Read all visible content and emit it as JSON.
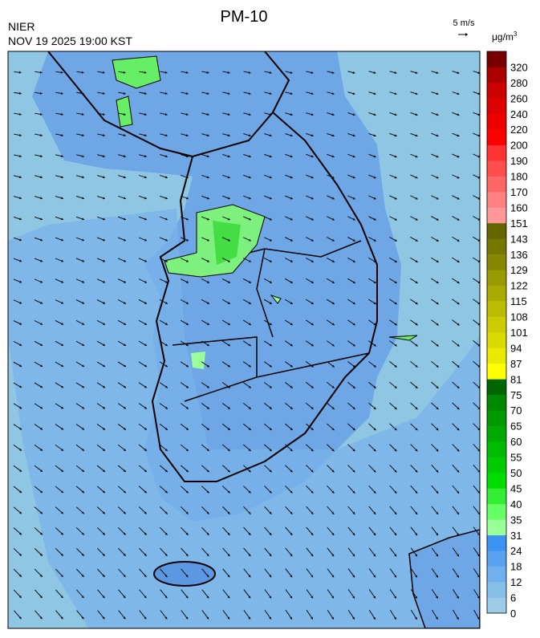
{
  "title": "PM-10",
  "agency": "NIER",
  "timestamp": "NOV 19 2025 19:00 KST",
  "wind_scale": "5 m/s",
  "colorbar": {
    "unit": "μg/m",
    "unit_exponent": "3",
    "ticks": [
      0,
      6,
      12,
      18,
      24,
      31,
      35,
      40,
      45,
      50,
      55,
      60,
      65,
      70,
      75,
      81,
      87,
      94,
      101,
      108,
      115,
      122,
      129,
      136,
      143,
      151,
      160,
      170,
      180,
      190,
      200,
      220,
      240,
      260,
      280,
      320
    ],
    "colors": [
      "#9dcde6",
      "#86bfe9",
      "#70b0ee",
      "#5aa2f0",
      "#3d93f2",
      "#99ff99",
      "#66ff66",
      "#33ee33",
      "#00dd00",
      "#00cc00",
      "#00bb00",
      "#00aa00",
      "#009900",
      "#008800",
      "#006600",
      "#ffff00",
      "#eaea00",
      "#dada00",
      "#cccc00",
      "#bbbb00",
      "#aaaa00",
      "#999900",
      "#888800",
      "#777700",
      "#666600",
      "#ff9999",
      "#ff8080",
      "#ff6666",
      "#ff4d4d",
      "#ff3333",
      "#ff0000",
      "#ee0000",
      "#dd0000",
      "#cc0000",
      "#aa0000",
      "#770000"
    ]
  }
}
